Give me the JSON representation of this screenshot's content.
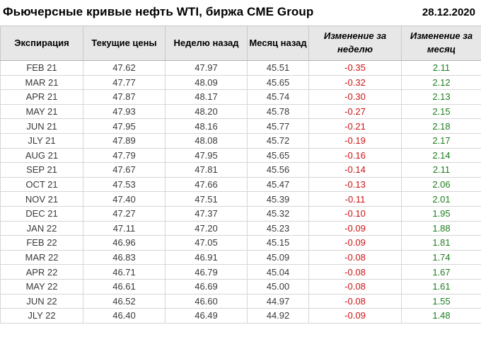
{
  "header": {
    "title": "Фьючерсные кривые нефть WTI, биржа CME Group",
    "date": "28.12.2020"
  },
  "colors": {
    "positive": "#1e7d1e",
    "negative": "#cc1414",
    "header_bg": "#e7e7e7"
  },
  "table": {
    "columns": [
      {
        "key": "expiration",
        "label": "Экспирация",
        "italic": false
      },
      {
        "key": "current",
        "label": "Текущие цены",
        "italic": false
      },
      {
        "key": "week_ago",
        "label": "Неделю назад",
        "italic": false
      },
      {
        "key": "month_ago",
        "label": "Месяц назад",
        "italic": false
      },
      {
        "key": "week_change",
        "label": "Изменение за неделю",
        "italic": true
      },
      {
        "key": "month_change",
        "label": "Изменение за месяц",
        "italic": true
      }
    ],
    "rows": [
      {
        "expiration": "FEB 21",
        "current": "47.62",
        "week_ago": "47.97",
        "month_ago": "45.51",
        "week_change": "-0.35",
        "month_change": "2.11"
      },
      {
        "expiration": "MAR 21",
        "current": "47.77",
        "week_ago": "48.09",
        "month_ago": "45.65",
        "week_change": "-0.32",
        "month_change": "2.12"
      },
      {
        "expiration": "APR 21",
        "current": "47.87",
        "week_ago": "48.17",
        "month_ago": "45.74",
        "week_change": "-0.30",
        "month_change": "2.13"
      },
      {
        "expiration": "MAY 21",
        "current": "47.93",
        "week_ago": "48.20",
        "month_ago": "45.78",
        "week_change": "-0.27",
        "month_change": "2.15"
      },
      {
        "expiration": "JUN 21",
        "current": "47.95",
        "week_ago": "48.16",
        "month_ago": "45.77",
        "week_change": "-0.21",
        "month_change": "2.18"
      },
      {
        "expiration": "JLY 21",
        "current": "47.89",
        "week_ago": "48.08",
        "month_ago": "45.72",
        "week_change": "-0.19",
        "month_change": "2.17"
      },
      {
        "expiration": "AUG 21",
        "current": "47.79",
        "week_ago": "47.95",
        "month_ago": "45.65",
        "week_change": "-0.16",
        "month_change": "2.14"
      },
      {
        "expiration": "SEP 21",
        "current": "47.67",
        "week_ago": "47.81",
        "month_ago": "45.56",
        "week_change": "-0.14",
        "month_change": "2.11"
      },
      {
        "expiration": "OCT 21",
        "current": "47.53",
        "week_ago": "47.66",
        "month_ago": "45.47",
        "week_change": "-0.13",
        "month_change": "2.06"
      },
      {
        "expiration": "NOV 21",
        "current": "47.40",
        "week_ago": "47.51",
        "month_ago": "45.39",
        "week_change": "-0.11",
        "month_change": "2.01"
      },
      {
        "expiration": "DEC 21",
        "current": "47.27",
        "week_ago": "47.37",
        "month_ago": "45.32",
        "week_change": "-0.10",
        "month_change": "1.95"
      },
      {
        "expiration": "JAN 22",
        "current": "47.11",
        "week_ago": "47.20",
        "month_ago": "45.23",
        "week_change": "-0.09",
        "month_change": "1.88"
      },
      {
        "expiration": "FEB 22",
        "current": "46.96",
        "week_ago": "47.05",
        "month_ago": "45.15",
        "week_change": "-0.09",
        "month_change": "1.81"
      },
      {
        "expiration": "MAR 22",
        "current": "46.83",
        "week_ago": "46.91",
        "month_ago": "45.09",
        "week_change": "-0.08",
        "month_change": "1.74"
      },
      {
        "expiration": "APR 22",
        "current": "46.71",
        "week_ago": "46.79",
        "month_ago": "45.04",
        "week_change": "-0.08",
        "month_change": "1.67"
      },
      {
        "expiration": "MAY 22",
        "current": "46.61",
        "week_ago": "46.69",
        "month_ago": "45.00",
        "week_change": "-0.08",
        "month_change": "1.61"
      },
      {
        "expiration": "JUN 22",
        "current": "46.52",
        "week_ago": "46.60",
        "month_ago": "44.97",
        "week_change": "-0.08",
        "month_change": "1.55"
      },
      {
        "expiration": "JLY 22",
        "current": "46.40",
        "week_ago": "46.49",
        "month_ago": "44.92",
        "week_change": "-0.09",
        "month_change": "1.48"
      }
    ]
  }
}
